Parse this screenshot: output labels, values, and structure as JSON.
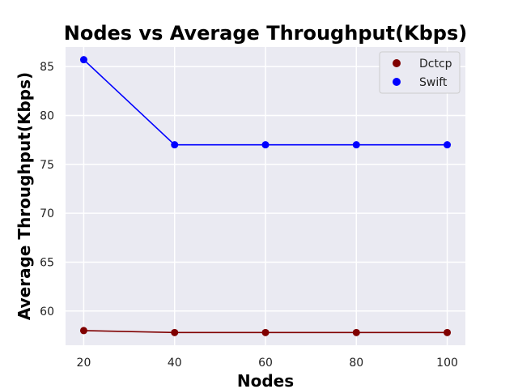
{
  "chart_data": {
    "type": "line",
    "title": "Nodes vs Average Throughput(Kbps)",
    "xlabel": "Nodes",
    "ylabel": "Average Throughput(Kbps)",
    "x": [
      20,
      40,
      60,
      80,
      100
    ],
    "xticks": [
      "20",
      "40",
      "60",
      "80",
      "100"
    ],
    "yticks": [
      "60",
      "65",
      "70",
      "75",
      "80",
      "85"
    ],
    "ytick_values": [
      60,
      65,
      70,
      75,
      80,
      85
    ],
    "xlim": [
      16,
      104
    ],
    "ylim": [
      56.5,
      87.0
    ],
    "grid": true,
    "legend_position": "top-right",
    "series": [
      {
        "name": "Dctcp",
        "values": [
          58.0,
          57.8,
          57.8,
          57.8,
          57.8
        ],
        "color": "#800000"
      },
      {
        "name": "Swift",
        "values": [
          85.7,
          77.0,
          77.0,
          77.0,
          77.0
        ],
        "color": "#0000ff"
      }
    ]
  }
}
